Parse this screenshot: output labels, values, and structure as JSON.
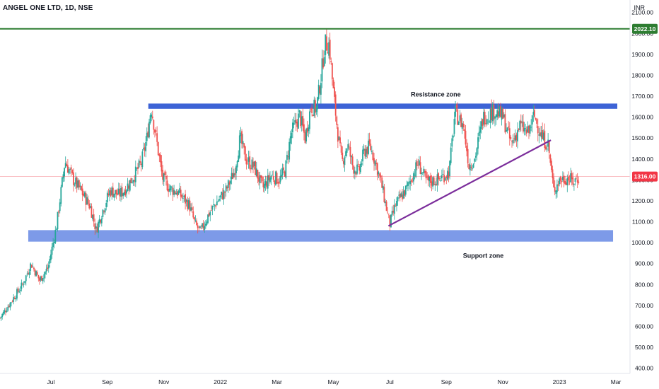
{
  "header": {
    "title": "ANGEL ONE LTD, 1D, NSE",
    "currency": "INR"
  },
  "colors": {
    "up": "#26a69a",
    "down": "#ef5350",
    "resistance": "#3d63d6",
    "support": "#6f8fe6",
    "trendline": "#7b2d9b",
    "top_line": "#2e7d32",
    "last_price": "#f23645"
  },
  "chart_data": {
    "type": "candlestick",
    "title": "ANGEL ONE LTD, 1D, NSE",
    "y_unit": "INR",
    "ylim": [
      375,
      2160
    ],
    "y_ticks": [
      "400.00",
      "500.00",
      "600.00",
      "700.00",
      "800.00",
      "900.00",
      "1000.00",
      "1100.00",
      "1200.00",
      "1300.00",
      "1400.00",
      "1500.00",
      "1600.00",
      "1700.00",
      "1800.00",
      "1900.00",
      "2000.00",
      "2100.00"
    ],
    "x_ticks": [
      "Jul",
      "Sep",
      "Nov",
      "2022",
      "Mar",
      "May",
      "Jul",
      "Sep",
      "Nov",
      "2023",
      "Mar"
    ],
    "x_tick_months": [
      12,
      14,
      16,
      18,
      20,
      22,
      24,
      26,
      28,
      30,
      32
    ],
    "xlim_months": [
      10.2,
      32.5
    ],
    "series_path": [
      [
        10.2,
        640
      ],
      [
        10.6,
        720
      ],
      [
        11.0,
        800
      ],
      [
        11.3,
        900
      ],
      [
        11.6,
        820
      ],
      [
        11.9,
        880
      ],
      [
        12.2,
        1080
      ],
      [
        12.5,
        1390
      ],
      [
        12.8,
        1300
      ],
      [
        13.1,
        1240
      ],
      [
        13.4,
        1170
      ],
      [
        13.6,
        1060
      ],
      [
        13.9,
        1180
      ],
      [
        14.1,
        1250
      ],
      [
        14.4,
        1230
      ],
      [
        14.6,
        1250
      ],
      [
        14.9,
        1310
      ],
      [
        15.2,
        1380
      ],
      [
        15.4,
        1500
      ],
      [
        15.55,
        1650
      ],
      [
        15.75,
        1480
      ],
      [
        15.95,
        1310
      ],
      [
        16.2,
        1260
      ],
      [
        16.5,
        1240
      ],
      [
        16.9,
        1180
      ],
      [
        17.1,
        1090
      ],
      [
        17.3,
        1050
      ],
      [
        17.6,
        1140
      ],
      [
        17.9,
        1200
      ],
      [
        18.2,
        1250
      ],
      [
        18.5,
        1340
      ],
      [
        18.7,
        1500
      ],
      [
        18.9,
        1400
      ],
      [
        19.2,
        1360
      ],
      [
        19.5,
        1260
      ],
      [
        19.8,
        1320
      ],
      [
        20.1,
        1300
      ],
      [
        20.3,
        1350
      ],
      [
        20.5,
        1520
      ],
      [
        20.8,
        1610
      ],
      [
        21.0,
        1500
      ],
      [
        21.2,
        1650
      ],
      [
        21.4,
        1640
      ],
      [
        21.55,
        1780
      ],
      [
        21.7,
        1950
      ],
      [
        21.85,
        1950
      ],
      [
        22.0,
        1720
      ],
      [
        22.15,
        1530
      ],
      [
        22.3,
        1380
      ],
      [
        22.5,
        1470
      ],
      [
        22.7,
        1360
      ],
      [
        22.9,
        1340
      ],
      [
        23.1,
        1440
      ],
      [
        23.3,
        1460
      ],
      [
        23.5,
        1380
      ],
      [
        23.7,
        1280
      ],
      [
        23.9,
        1150
      ],
      [
        24.0,
        1090
      ],
      [
        24.2,
        1180
      ],
      [
        24.6,
        1260
      ],
      [
        25.0,
        1380
      ],
      [
        25.3,
        1290
      ],
      [
        25.7,
        1300
      ],
      [
        26.1,
        1340
      ],
      [
        26.3,
        1620
      ],
      [
        26.6,
        1560
      ],
      [
        26.8,
        1370
      ],
      [
        27.0,
        1400
      ],
      [
        27.3,
        1600
      ],
      [
        27.7,
        1630
      ],
      [
        28.0,
        1600
      ],
      [
        28.3,
        1470
      ],
      [
        28.6,
        1560
      ],
      [
        28.9,
        1520
      ],
      [
        29.1,
        1610
      ],
      [
        29.4,
        1500
      ],
      [
        29.6,
        1470
      ],
      [
        29.8,
        1250
      ],
      [
        30.0,
        1300
      ],
      [
        30.3,
        1310
      ],
      [
        30.5,
        1290
      ],
      [
        30.7,
        1316
      ]
    ],
    "annotations": {
      "resistance_zone": {
        "label": "Resistance zone",
        "x_start": 15.45,
        "x_end": 32.05,
        "y_low": 1640,
        "y_high": 1665
      },
      "support_zone": {
        "label": "Support zone",
        "x_start": 11.2,
        "x_end": 31.9,
        "y_low": 1005,
        "y_high": 1060
      },
      "trendline": {
        "from": [
          23.95,
          1080
        ],
        "to": [
          29.7,
          1490
        ]
      },
      "horizontal_line": {
        "value": 2022.1,
        "label": "2022.10"
      },
      "last_price": {
        "value": 1316,
        "label": "1316.00"
      }
    }
  }
}
